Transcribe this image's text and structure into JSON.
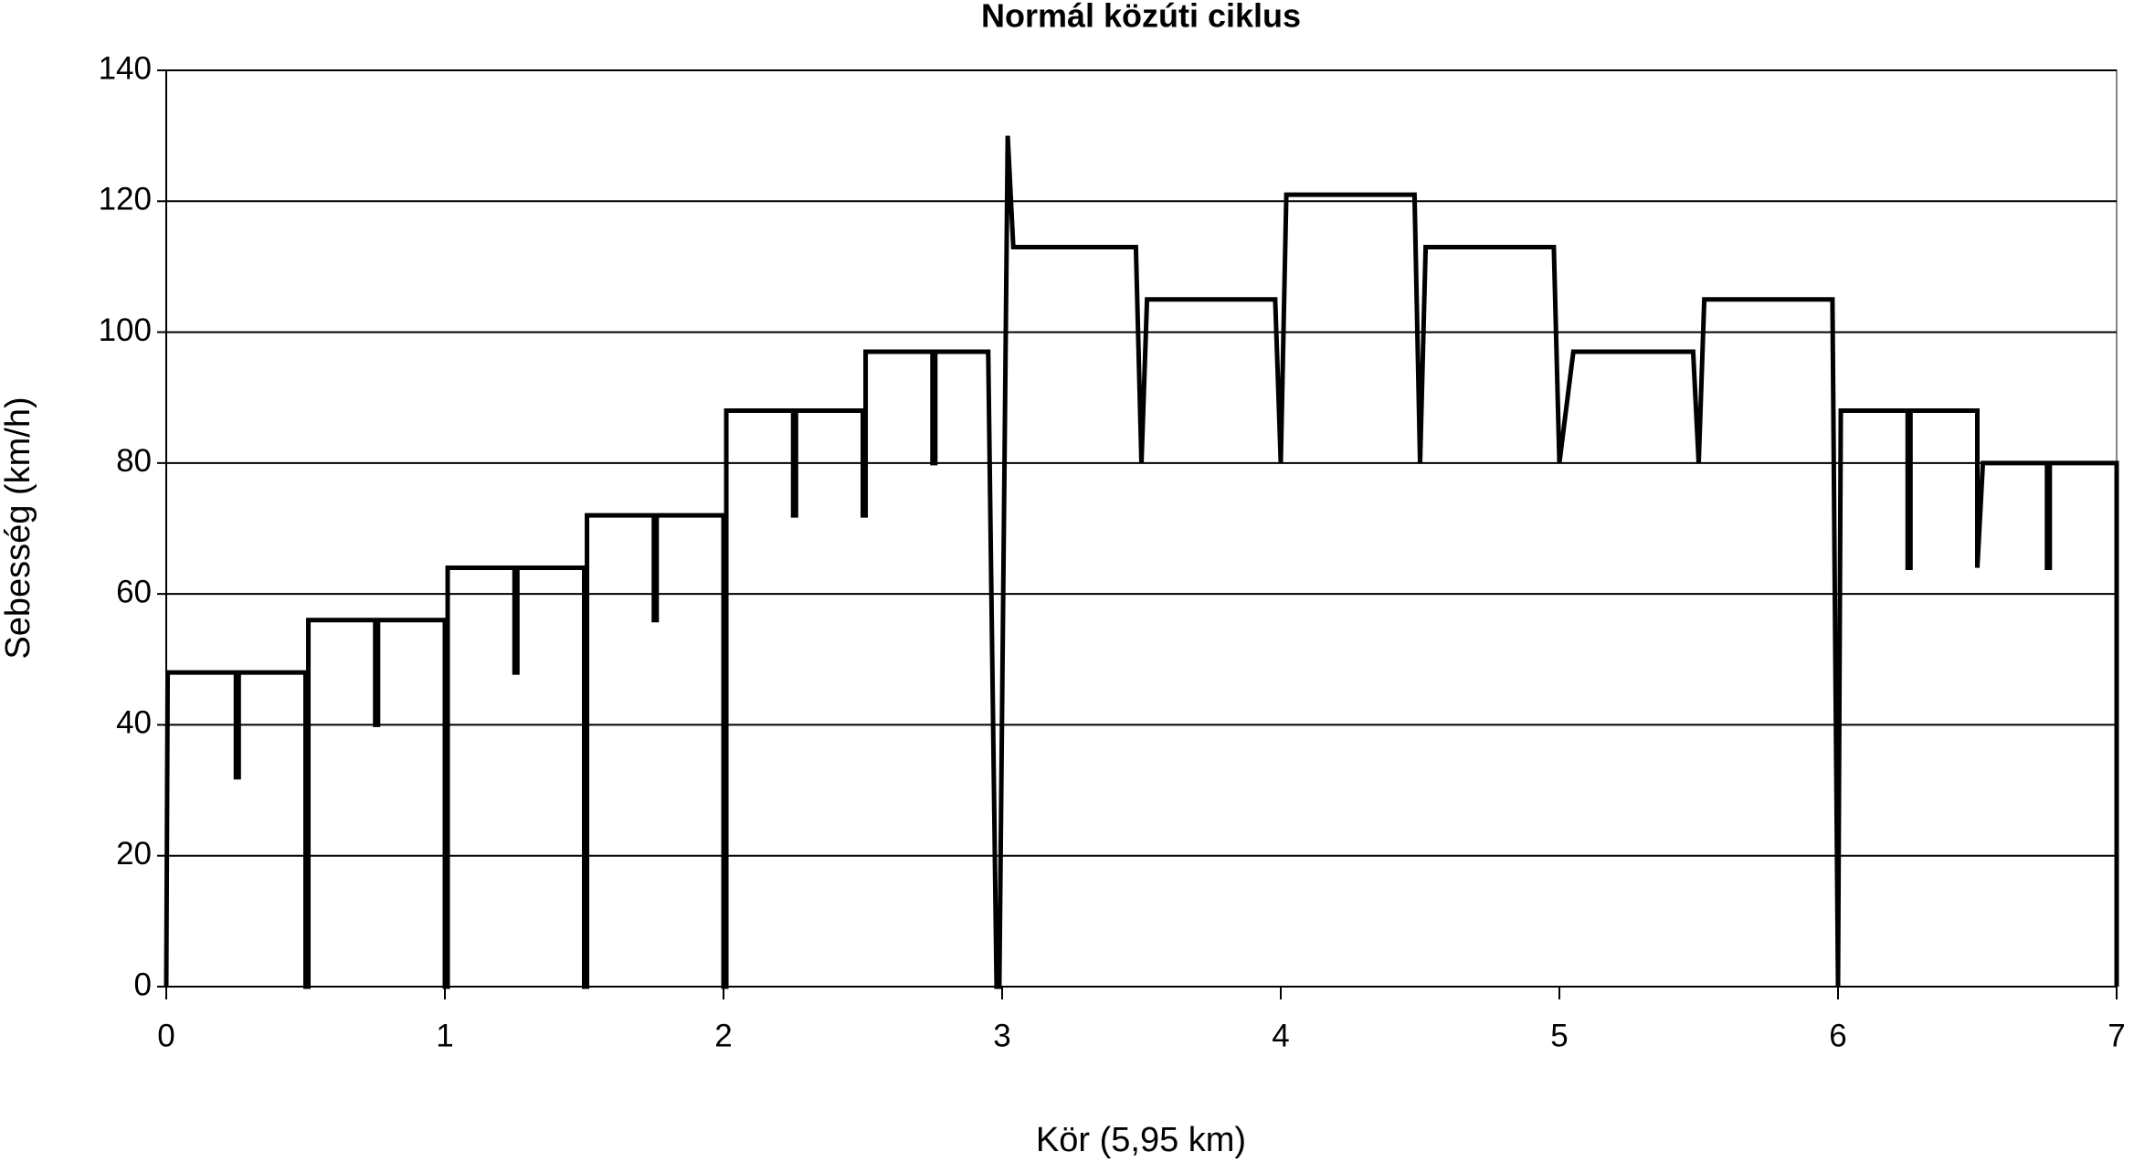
{
  "chart_data": {
    "type": "line",
    "title": "Normál közúti ciklus",
    "x_label": "Kör (5,95 km)",
    "y_label": "Sebesség (km/h)",
    "x": [
      0,
      0.005,
      0.25,
      0.25,
      0.26,
      0.26,
      0.5,
      0.5,
      0.51,
      0.51,
      0.75,
      0.75,
      0.76,
      0.76,
      1.0,
      1.0,
      1.01,
      1.01,
      1.25,
      1.25,
      1.26,
      1.26,
      1.5,
      1.5,
      1.51,
      1.51,
      1.75,
      1.75,
      1.76,
      1.76,
      2.0,
      2.0,
      2.01,
      2.01,
      2.25,
      2.25,
      2.26,
      2.26,
      2.5,
      2.5,
      2.51,
      2.51,
      2.75,
      2.75,
      2.76,
      2.76,
      2.95,
      2.98,
      2.99,
      3.02,
      3.04,
      3.48,
      3.5,
      3.52,
      3.98,
      4.0,
      4.02,
      4.48,
      4.5,
      4.52,
      4.98,
      5.0,
      5.05,
      5.48,
      5.5,
      5.52,
      5.98,
      6.0,
      6.01,
      6.25,
      6.25,
      6.26,
      6.26,
      6.5,
      6.5,
      6.52,
      6.75,
      6.75,
      6.76,
      6.76,
      7.0,
      7.0
    ],
    "values": [
      0,
      48,
      48,
      32,
      32,
      48,
      48,
      0,
      0,
      56,
      56,
      40,
      40,
      56,
      56,
      0,
      0,
      64,
      64,
      48,
      48,
      64,
      64,
      0,
      0,
      72,
      72,
      56,
      56,
      72,
      72,
      0,
      0,
      88,
      88,
      72,
      72,
      88,
      88,
      72,
      72,
      97,
      97,
      80,
      80,
      97,
      97,
      0,
      0,
      130,
      113,
      113,
      80,
      105,
      105,
      80,
      121,
      121,
      80,
      113,
      113,
      80,
      97,
      97,
      80,
      105,
      105,
      0,
      88,
      88,
      64,
      64,
      88,
      88,
      64,
      80,
      80,
      64,
      64,
      80,
      80,
      0
    ],
    "color": "#000000",
    "xlim": [
      0,
      7
    ],
    "xticks": [
      0,
      1,
      2,
      3,
      4,
      5,
      6,
      7
    ],
    "ylim": [
      0,
      140
    ],
    "yticks": [
      0,
      20,
      40,
      60,
      80,
      100,
      120,
      140
    ],
    "grid": true
  }
}
